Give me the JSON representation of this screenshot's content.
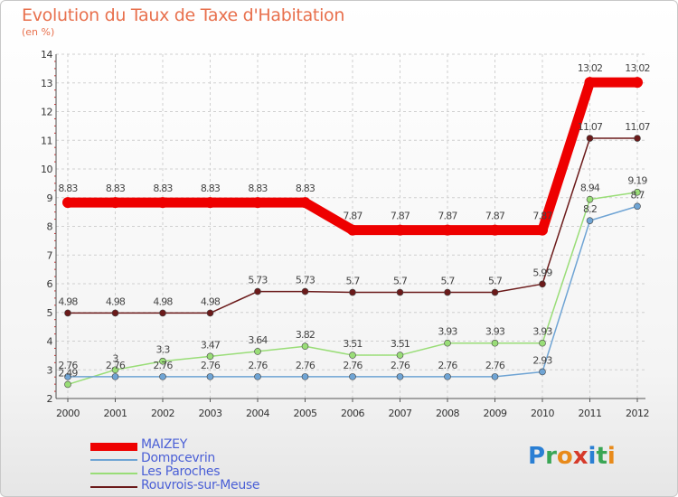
{
  "title": "Evolution du Taux de Taxe d'Habitation",
  "subtitle": "(en %)",
  "brand": {
    "text": "Proxiti",
    "letter_colors": [
      "#2a7fd4",
      "#3aa655",
      "#e88a1a",
      "#d63a2a",
      "#2a7fd4",
      "#3aa655",
      "#e88a1a"
    ]
  },
  "chart_data": {
    "type": "line",
    "title": "Evolution du Taux de Taxe d'Habitation",
    "subtitle": "(en %)",
    "xlabel": "",
    "ylabel": "",
    "x": [
      "2000",
      "2001",
      "2002",
      "2003",
      "2004",
      "2005",
      "2006",
      "2007",
      "2008",
      "2009",
      "2010",
      "2011",
      "2012"
    ],
    "ylim": [
      2,
      14
    ],
    "yticks": [
      "2",
      "3",
      "4",
      "5",
      "6",
      "7",
      "8",
      "9",
      "10",
      "11",
      "12",
      "13",
      "14"
    ],
    "grid": true,
    "legend_position": "bottom-left",
    "series": [
      {
        "name": "Rouvrois-sur-Meuse",
        "color": "#6b1a1a",
        "values": [
          4.98,
          4.98,
          4.98,
          4.98,
          5.73,
          5.73,
          5.7,
          5.7,
          5.7,
          5.7,
          5.99,
          11.07,
          11.07
        ],
        "labels": [
          "4.98",
          "4.98",
          "4.98",
          "4.98",
          "5.73",
          "5.73",
          "5.7",
          "5.7",
          "5.7",
          "5.7",
          "5.99",
          "11.07",
          "11.07"
        ]
      },
      {
        "name": "Les Paroches",
        "color": "#99dd77",
        "values": [
          2.49,
          3,
          3.3,
          3.47,
          3.64,
          3.82,
          3.51,
          3.51,
          3.93,
          3.93,
          3.93,
          8.94,
          9.19
        ],
        "labels": [
          "2.49",
          "3",
          "3.3",
          "3.47",
          "3.64",
          "3.82",
          "3.51",
          "3.51",
          "3.93",
          "3.93",
          "3.93",
          "8.94",
          "9.19"
        ]
      },
      {
        "name": "Dompcevrin",
        "color": "#6fa4d4",
        "values": [
          2.76,
          2.76,
          2.76,
          2.76,
          2.76,
          2.76,
          2.76,
          2.76,
          2.76,
          2.76,
          2.93,
          8.2,
          8.7
        ],
        "labels": [
          "2.76",
          "2.76",
          "2.76",
          "2.76",
          "2.76",
          "2.76",
          "2.76",
          "2.76",
          "2.76",
          "2.76",
          "2.93",
          "8.2",
          "8.7"
        ]
      },
      {
        "name": "MAIZEY",
        "color": "#ee0000",
        "values": [
          8.83,
          8.83,
          8.83,
          8.83,
          8.83,
          8.83,
          7.87,
          7.87,
          7.87,
          7.87,
          7.87,
          13.02,
          13.02
        ],
        "labels": [
          "8.83",
          "8.83",
          "8.83",
          "8.83",
          "8.83",
          "8.83",
          "7.87",
          "7.87",
          "7.87",
          "7.87",
          "7.87",
          "13.02",
          "13.02"
        ]
      }
    ]
  },
  "legend": [
    {
      "name": "MAIZEY",
      "color": "#ee0000",
      "thick": true
    },
    {
      "name": "Dompcevrin",
      "color": "#6fa4d4",
      "thick": false
    },
    {
      "name": "Les Paroches",
      "color": "#99dd77",
      "thick": false
    },
    {
      "name": "Rouvrois-sur-Meuse",
      "color": "#6b1a1a",
      "thick": false
    }
  ]
}
